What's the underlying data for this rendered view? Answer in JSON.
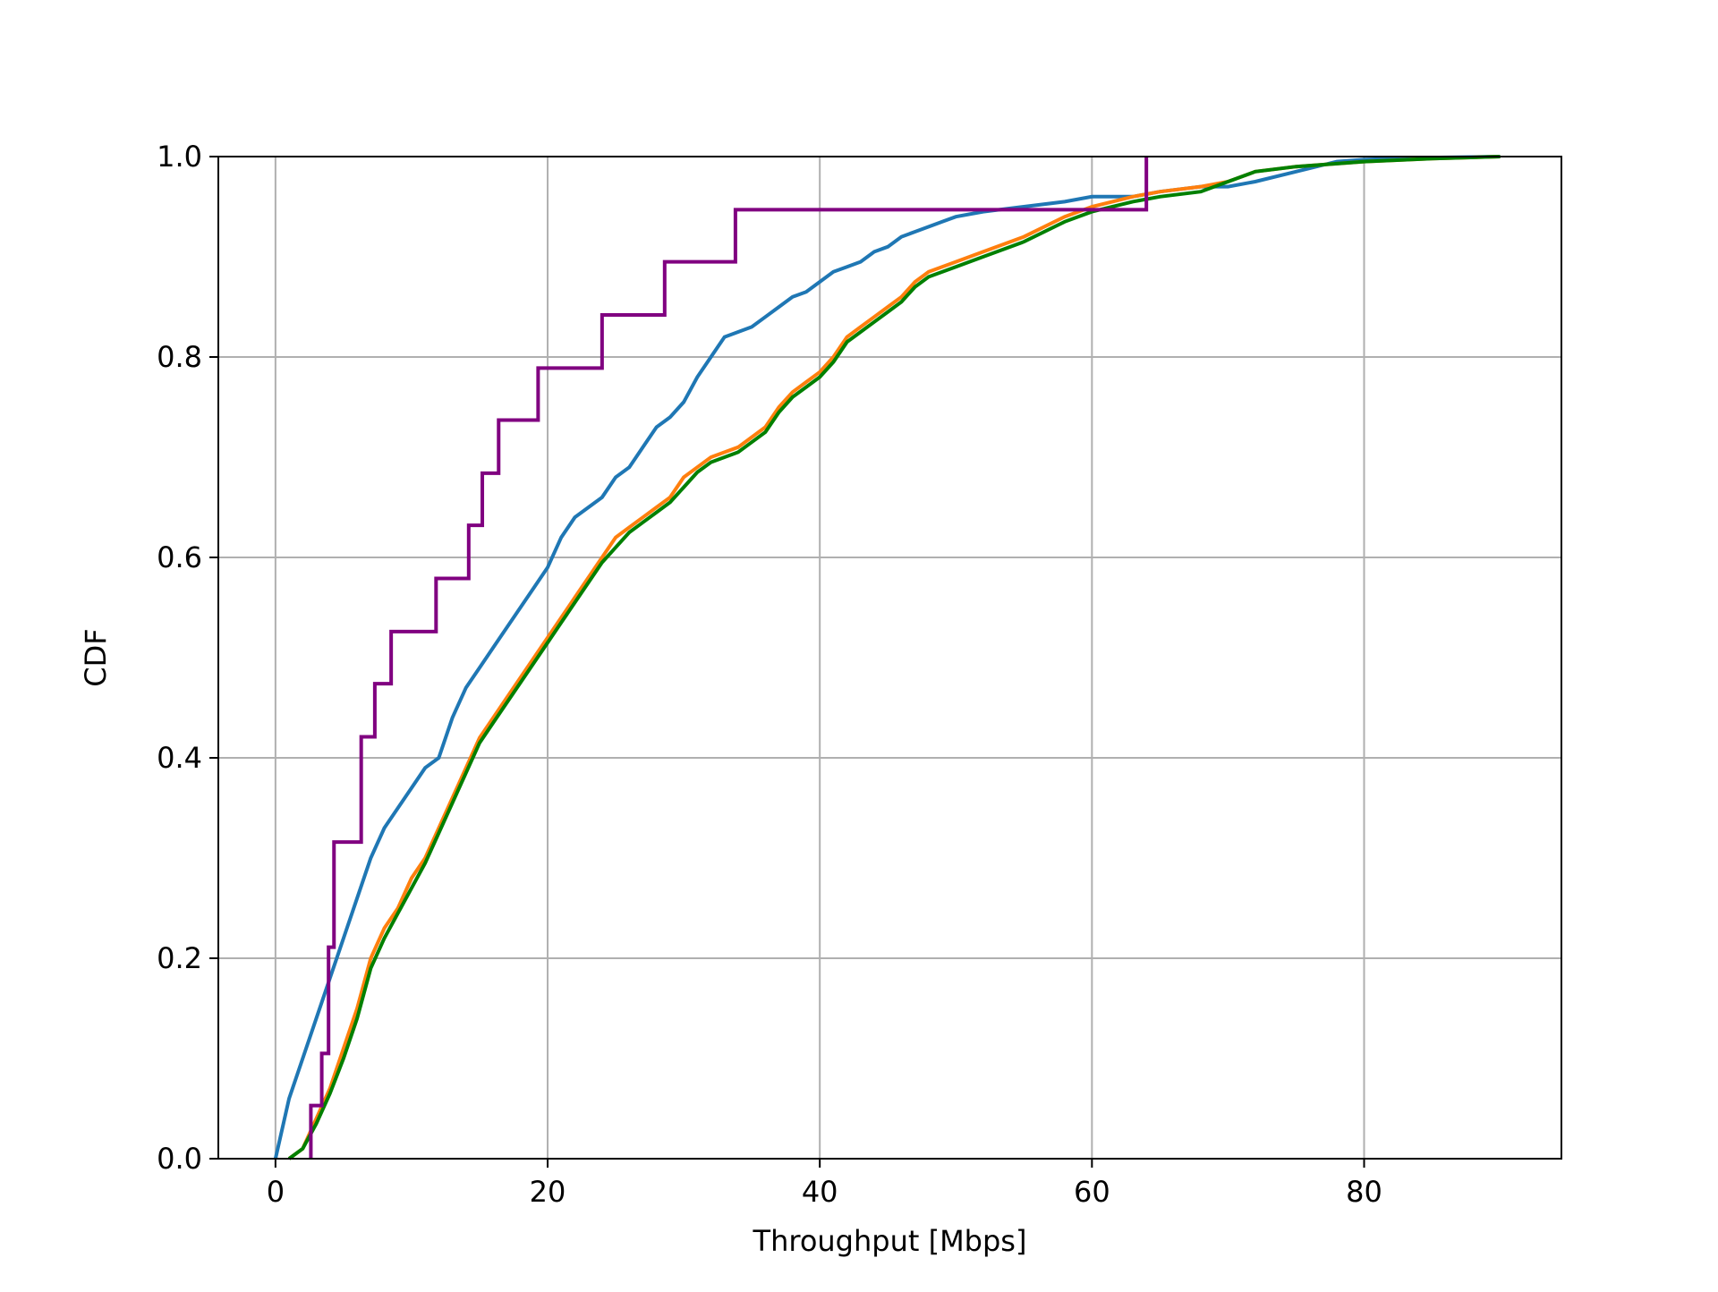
{
  "chart_data": {
    "type": "line",
    "title": "",
    "xlabel": "Throughput [Mbps]",
    "ylabel": "CDF",
    "xlim": [
      -4.2,
      94.5
    ],
    "ylim": [
      0,
      1
    ],
    "xticks": [
      0,
      20,
      40,
      60,
      80
    ],
    "yticks": [
      0.0,
      0.2,
      0.4,
      0.6,
      0.8,
      1.0
    ],
    "xtick_labels": [
      "0",
      "20",
      "40",
      "60",
      "80"
    ],
    "ytick_labels": [
      "0.0",
      "0.2",
      "0.4",
      "0.6",
      "0.8",
      "1.0"
    ],
    "grid": true,
    "series": [
      {
        "color": "#1f77b4",
        "step": false,
        "x": [
          0,
          1,
          2,
          3,
          4,
          5,
          6,
          7,
          8,
          9,
          10,
          11,
          12,
          13,
          14,
          15,
          16,
          17,
          18,
          19,
          20,
          21,
          22,
          23,
          24,
          25,
          26,
          27,
          28,
          29,
          30,
          31,
          32,
          33,
          34,
          35,
          36,
          37,
          38,
          39,
          40,
          41,
          42,
          43,
          44,
          45,
          46,
          47,
          48,
          49,
          50,
          52,
          55,
          58,
          60,
          63,
          65,
          68,
          70,
          72,
          75,
          78,
          80,
          85,
          90
        ],
        "y": [
          0,
          0.06,
          0.1,
          0.14,
          0.18,
          0.22,
          0.26,
          0.3,
          0.33,
          0.35,
          0.37,
          0.39,
          0.4,
          0.44,
          0.47,
          0.49,
          0.51,
          0.53,
          0.55,
          0.57,
          0.59,
          0.62,
          0.64,
          0.65,
          0.66,
          0.68,
          0.69,
          0.71,
          0.73,
          0.74,
          0.755,
          0.78,
          0.8,
          0.82,
          0.825,
          0.83,
          0.84,
          0.85,
          0.86,
          0.865,
          0.875,
          0.885,
          0.89,
          0.895,
          0.905,
          0.91,
          0.92,
          0.925,
          0.93,
          0.935,
          0.94,
          0.945,
          0.95,
          0.955,
          0.96,
          0.96,
          0.965,
          0.97,
          0.97,
          0.975,
          0.985,
          0.995,
          0.997,
          0.999,
          1.0
        ]
      },
      {
        "color": "#ff7f0e",
        "step": false,
        "x": [
          1,
          2,
          3,
          4,
          5,
          6,
          7,
          8,
          9,
          10,
          11,
          12,
          13,
          14,
          15,
          16,
          17,
          18,
          19,
          20,
          21,
          22,
          23,
          24,
          25,
          26,
          27,
          28,
          29,
          30,
          31,
          32,
          33,
          34,
          35,
          36,
          37,
          38,
          39,
          40,
          41,
          42,
          43,
          44,
          45,
          46,
          47,
          48,
          50,
          52,
          55,
          58,
          60,
          63,
          65,
          68,
          70,
          72,
          75,
          80,
          85,
          90
        ],
        "y": [
          0,
          0.01,
          0.04,
          0.07,
          0.11,
          0.15,
          0.2,
          0.23,
          0.25,
          0.28,
          0.3,
          0.33,
          0.36,
          0.39,
          0.42,
          0.44,
          0.46,
          0.48,
          0.5,
          0.52,
          0.54,
          0.56,
          0.58,
          0.6,
          0.62,
          0.63,
          0.64,
          0.65,
          0.66,
          0.68,
          0.69,
          0.7,
          0.705,
          0.71,
          0.72,
          0.73,
          0.75,
          0.765,
          0.775,
          0.785,
          0.8,
          0.82,
          0.83,
          0.84,
          0.85,
          0.86,
          0.875,
          0.885,
          0.895,
          0.905,
          0.92,
          0.94,
          0.95,
          0.96,
          0.965,
          0.97,
          0.975,
          0.985,
          0.99,
          0.995,
          0.998,
          1.0
        ]
      },
      {
        "color": "#008000",
        "step": false,
        "x": [
          1,
          2,
          3,
          4,
          5,
          6,
          7,
          8,
          9,
          10,
          11,
          12,
          13,
          14,
          15,
          16,
          17,
          18,
          19,
          20,
          21,
          22,
          23,
          24,
          25,
          26,
          27,
          28,
          29,
          30,
          31,
          32,
          33,
          34,
          35,
          36,
          37,
          38,
          39,
          40,
          41,
          42,
          43,
          44,
          45,
          46,
          47,
          48,
          50,
          52,
          55,
          58,
          60,
          63,
          65,
          68,
          70,
          72,
          75,
          80,
          85,
          90
        ],
        "y": [
          0,
          0.01,
          0.035,
          0.065,
          0.1,
          0.14,
          0.19,
          0.22,
          0.245,
          0.27,
          0.295,
          0.325,
          0.355,
          0.385,
          0.415,
          0.435,
          0.455,
          0.475,
          0.495,
          0.515,
          0.535,
          0.555,
          0.575,
          0.595,
          0.61,
          0.625,
          0.635,
          0.645,
          0.655,
          0.67,
          0.685,
          0.695,
          0.7,
          0.705,
          0.715,
          0.725,
          0.745,
          0.76,
          0.77,
          0.78,
          0.795,
          0.815,
          0.825,
          0.835,
          0.845,
          0.855,
          0.87,
          0.88,
          0.89,
          0.9,
          0.915,
          0.935,
          0.945,
          0.955,
          0.96,
          0.965,
          0.975,
          0.985,
          0.99,
          0.995,
          0.998,
          1.0
        ]
      },
      {
        "color": "#800080",
        "step": true,
        "x": [
          2.6,
          3.4,
          3.9,
          4.3,
          6.3,
          7.3,
          8.5,
          11.8,
          14.2,
          15.2,
          16.4,
          19.3,
          24.0,
          28.6,
          33.8,
          64.0
        ],
        "y": [
          0.053,
          0.105,
          0.211,
          0.316,
          0.421,
          0.474,
          0.526,
          0.579,
          0.632,
          0.684,
          0.737,
          0.789,
          0.842,
          0.895,
          0.947,
          1.0
        ]
      }
    ]
  }
}
